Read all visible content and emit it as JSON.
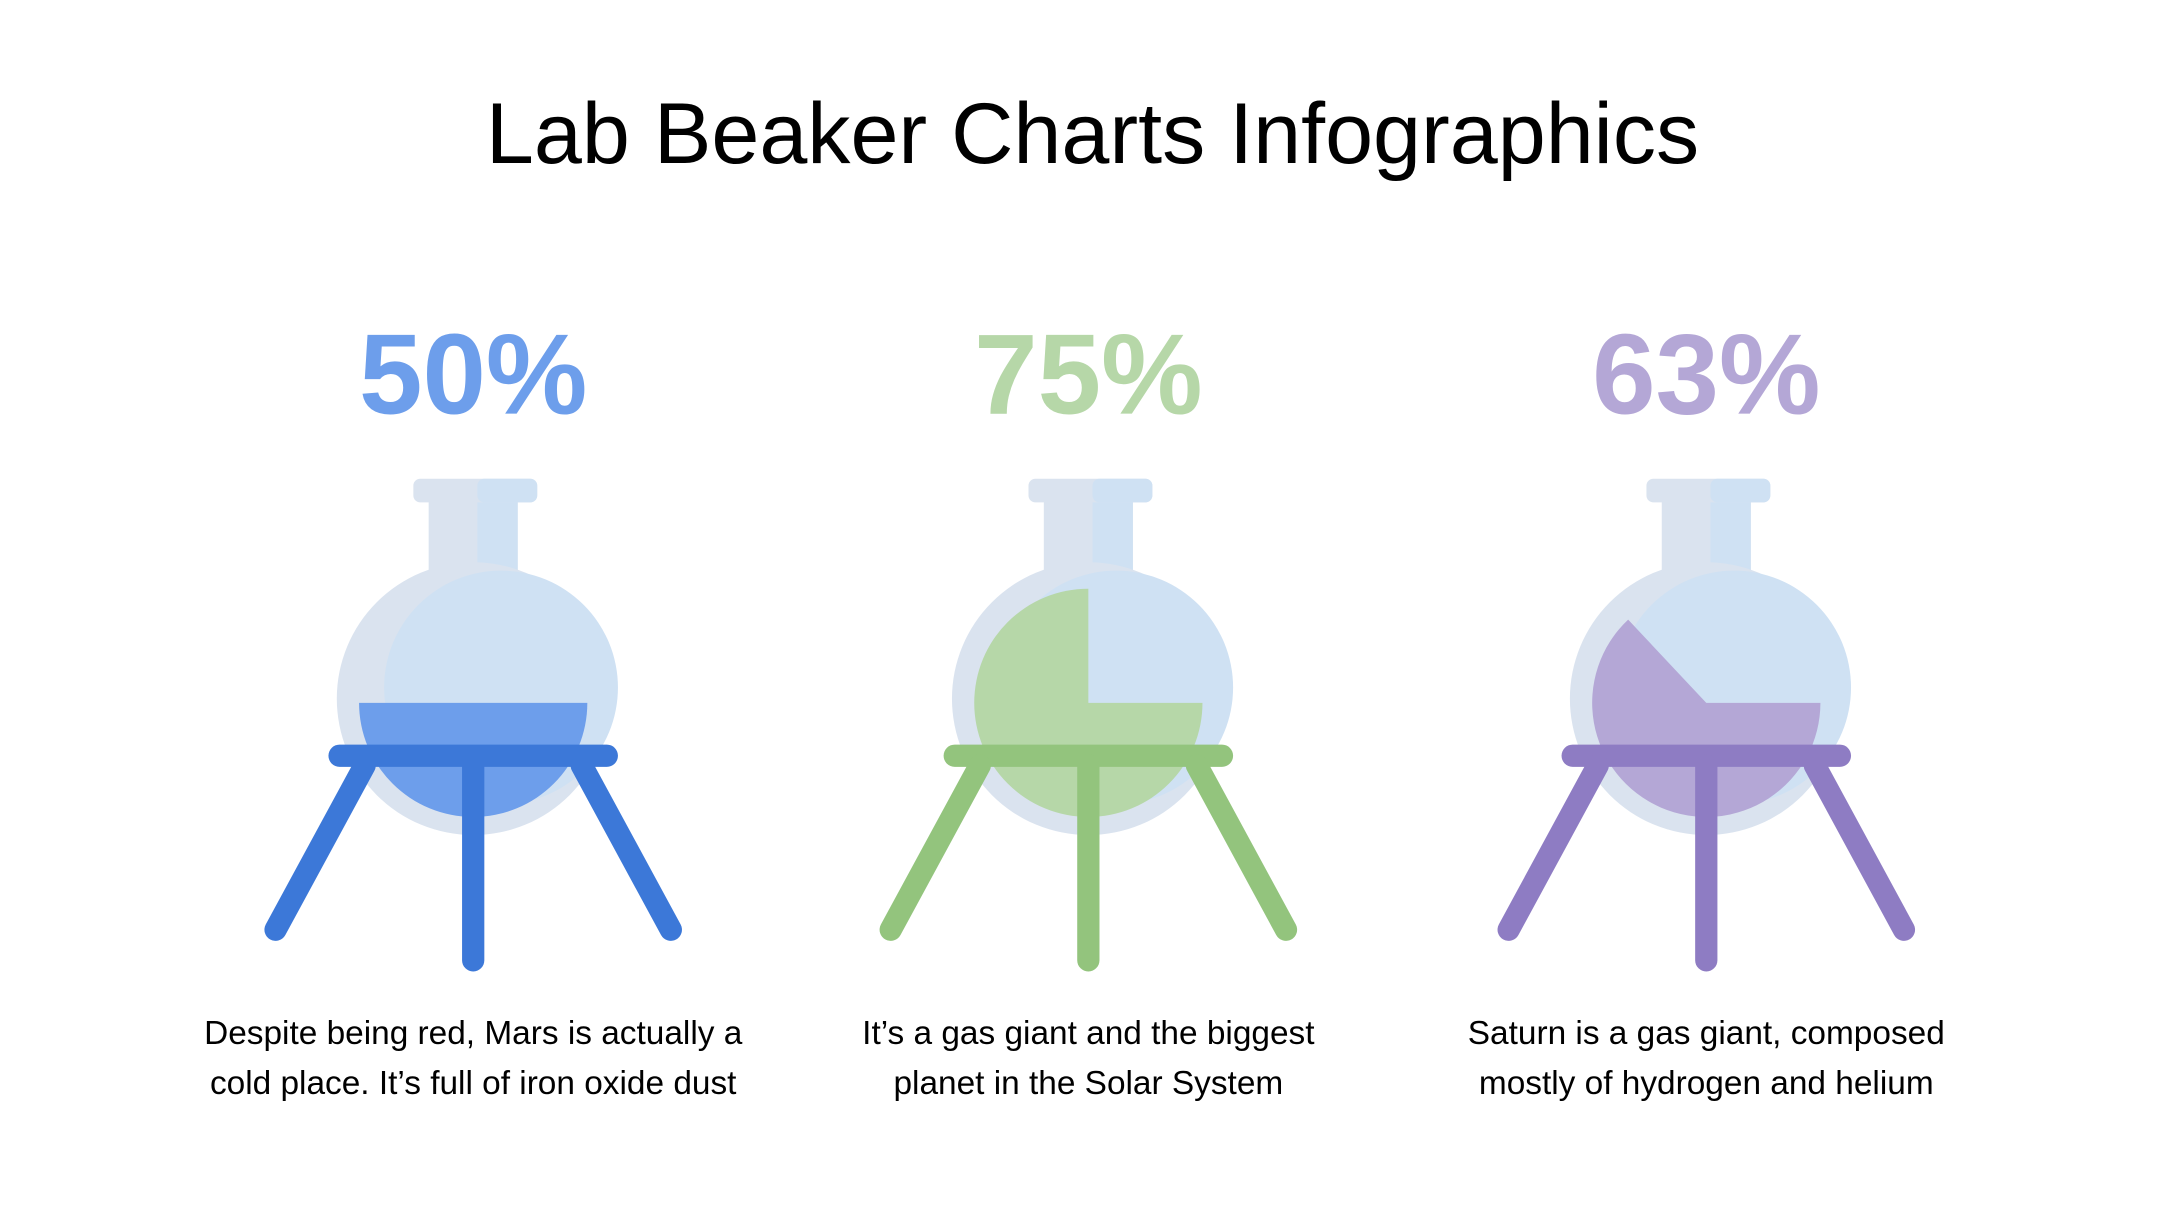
{
  "title": "Lab Beaker Charts Infographics",
  "items": [
    {
      "value": 50,
      "label": "50%",
      "color": "#6d9eeb",
      "stand_color": "#3c78d8",
      "description": [
        "Despite being red, Mars is actually a",
        "cold place. It’s full of iron oxide dust"
      ]
    },
    {
      "value": 75,
      "label": "75%",
      "color": "#b6d7a8",
      "stand_color": "#93c47d",
      "description": [
        "It’s a gas giant and the biggest",
        "planet in the Solar System"
      ]
    },
    {
      "value": 63,
      "label": "63%",
      "color": "#b4a7d6",
      "stand_color": "#8e7cc3",
      "description": [
        "Saturn is a gas giant, composed",
        "mostly of hydrogen and helium"
      ]
    }
  ]
}
